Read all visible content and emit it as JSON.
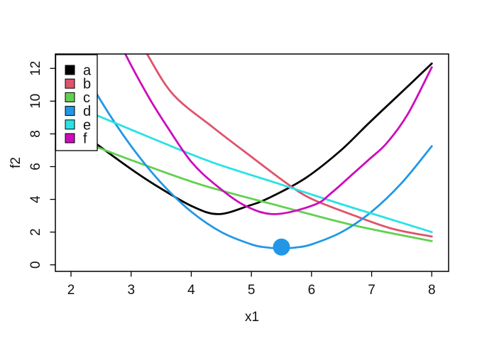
{
  "figure": {
    "background": "#ffffff",
    "box_color": "#000000",
    "text_color": "#111111"
  },
  "chart_data": {
    "type": "line",
    "title": "",
    "xlabel": "x1",
    "ylabel": "f2",
    "xlim": [
      1.74,
      8.28
    ],
    "ylim": [
      -0.4,
      12.88
    ],
    "x_ticks": [
      "2",
      "3",
      "4",
      "5",
      "6",
      "7",
      "8"
    ],
    "x_tick_values": [
      2,
      3,
      4,
      5,
      6,
      7,
      8
    ],
    "y_ticks": [
      "0",
      "2",
      "4",
      "6",
      "8",
      "10",
      "12"
    ],
    "y_tick_values": [
      0,
      2,
      4,
      6,
      8,
      10,
      12
    ],
    "grid": false,
    "legend_position": "top-left",
    "series": [
      {
        "name": "a",
        "color": "#000000",
        "points": [
          [
            2.0,
            8.6
          ],
          [
            2.43,
            7.37
          ],
          [
            3.0,
            5.85
          ],
          [
            3.39,
            4.9
          ],
          [
            4.0,
            3.6
          ],
          [
            4.45,
            3.1
          ],
          [
            4.95,
            3.6
          ],
          [
            5.3,
            4.1
          ],
          [
            5.9,
            5.3
          ],
          [
            6.49,
            7.0
          ],
          [
            6.96,
            8.68
          ],
          [
            7.5,
            10.55
          ],
          [
            8.0,
            12.3
          ]
        ]
      },
      {
        "name": "b",
        "color": "#DF536B",
        "points": [
          [
            3.0,
            14.5
          ],
          [
            3.26,
            12.9
          ],
          [
            3.7,
            10.4
          ],
          [
            4.36,
            8.4
          ],
          [
            5.0,
            6.6
          ],
          [
            5.58,
            5.0
          ],
          [
            6.0,
            4.03
          ],
          [
            6.72,
            3.0
          ],
          [
            7.35,
            2.2
          ],
          [
            8.0,
            1.73
          ]
        ]
      },
      {
        "name": "c",
        "color": "#61D04F",
        "points": [
          [
            2.0,
            7.8
          ],
          [
            2.43,
            7.2
          ],
          [
            3.0,
            6.4
          ],
          [
            4.16,
            4.9
          ],
          [
            5.46,
            3.6
          ],
          [
            6.72,
            2.4
          ],
          [
            8.0,
            1.45
          ]
        ]
      },
      {
        "name": "d",
        "color": "#2297E6",
        "points": [
          [
            2.0,
            13.25
          ],
          [
            2.5,
            10.0
          ],
          [
            3.0,
            7.25
          ],
          [
            3.5,
            5.0
          ],
          [
            4.0,
            3.25
          ],
          [
            4.5,
            2.0
          ],
          [
            5.0,
            1.25
          ],
          [
            5.25,
            1.0625
          ],
          [
            5.5,
            1.0
          ],
          [
            5.75,
            1.0625
          ],
          [
            6.0,
            1.25
          ],
          [
            6.5,
            2.0
          ],
          [
            7.0,
            3.25
          ],
          [
            7.5,
            5.0
          ],
          [
            8.0,
            7.25
          ]
        ]
      },
      {
        "name": "e",
        "color": "#28E2E5",
        "points": [
          [
            2.0,
            9.75
          ],
          [
            2.45,
            9.1
          ],
          [
            3.5,
            7.5
          ],
          [
            4.36,
            6.25
          ],
          [
            5.5,
            4.9
          ],
          [
            6.5,
            3.7
          ],
          [
            7.3,
            2.8
          ],
          [
            8.0,
            2.0
          ]
        ]
      },
      {
        "name": "f",
        "color": "#CD0BBC",
        "points": [
          [
            2.75,
            14.2
          ],
          [
            2.9,
            12.9
          ],
          [
            3.3,
            10.2
          ],
          [
            3.61,
            8.38
          ],
          [
            4.0,
            6.3
          ],
          [
            4.4,
            4.9
          ],
          [
            4.9,
            3.6
          ],
          [
            5.4,
            3.1
          ],
          [
            6.05,
            3.67
          ],
          [
            6.33,
            4.39
          ],
          [
            6.64,
            5.4
          ],
          [
            6.96,
            6.45
          ],
          [
            7.25,
            7.43
          ],
          [
            7.6,
            9.2
          ],
          [
            8.0,
            12.07
          ]
        ]
      }
    ],
    "highlight_point": {
      "series": "d",
      "x": 5.5,
      "y": 1,
      "color": "#2297E6",
      "radius_px": 12
    },
    "legend_labels": [
      "a",
      "b",
      "c",
      "d",
      "e",
      "f"
    ]
  }
}
